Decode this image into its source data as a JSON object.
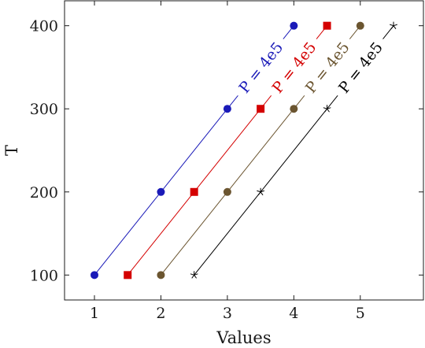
{
  "chart_data": {
    "type": "line",
    "xlabel": "Values",
    "ylabel": "T",
    "xlim": [
      0.55,
      5.95
    ],
    "ylim": [
      70,
      430
    ],
    "xticks": [
      1,
      2,
      3,
      4,
      5
    ],
    "yticks": [
      100,
      200,
      300,
      400
    ],
    "grid": false,
    "legend": "none",
    "series": [
      {
        "label": "P = 4e5",
        "color": "#1a1ab8",
        "marker": "circle",
        "x": [
          1,
          2,
          3,
          4
        ],
        "y": [
          100,
          200,
          300,
          400
        ]
      },
      {
        "label": "P = 4e5",
        "color": "#d40000",
        "marker": "square",
        "x": [
          1.5,
          2.5,
          3.5,
          4.5
        ],
        "y": [
          100,
          200,
          300,
          400
        ]
      },
      {
        "label": "P = 4e5",
        "color": "#6b5530",
        "marker": "circle",
        "x": [
          2,
          3,
          4,
          5
        ],
        "y": [
          100,
          200,
          300,
          400
        ]
      },
      {
        "label": "P = 4e5",
        "color": "#000000",
        "marker": "star",
        "x": [
          2.5,
          3.5,
          4.5,
          5.5
        ],
        "y": [
          100,
          200,
          300,
          400
        ]
      }
    ]
  }
}
